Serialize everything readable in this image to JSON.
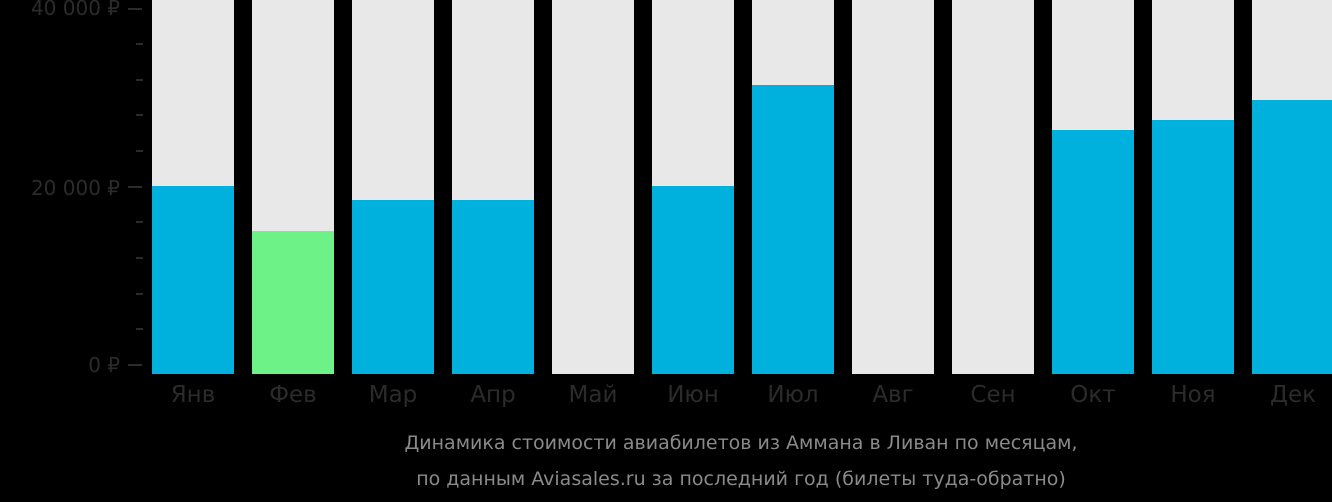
{
  "chart_data": {
    "type": "bar",
    "title": "Динамика стоимости авиабилетов из Аммана в Ливан по месяцам,",
    "subtitle": "по данным Aviasales.ru за последний год (билеты туда-обратно)",
    "xlabel": "",
    "ylabel": "",
    "ylim": [
      0,
      40000
    ],
    "y_ticks": [
      "0 ₽",
      "20 000 ₽",
      "40 000 ₽"
    ],
    "grid": false,
    "legend": null,
    "categories": [
      "Янв",
      "Фев",
      "Мар",
      "Апр",
      "Май",
      "Июн",
      "Июл",
      "Авг",
      "Сен",
      "Окт",
      "Ноя",
      "Дек"
    ],
    "values": [
      20100,
      15000,
      18500,
      18500,
      null,
      20100,
      31400,
      null,
      null,
      26400,
      27500,
      29700
    ],
    "highlight_index": 1,
    "colors": {
      "bar": "#00b0dd",
      "highlight": "#6cf286",
      "background_bar": "#e8e8e8"
    }
  },
  "axis": {
    "y0": "0 ₽",
    "y1": "20 000 ₽",
    "y2": "40 000 ₽"
  },
  "caption": {
    "line1": "Динамика стоимости авиабилетов из Аммана в Ливан по месяцам,",
    "line2": "по данным Aviasales.ru за последний год (билеты туда-обратно)"
  }
}
